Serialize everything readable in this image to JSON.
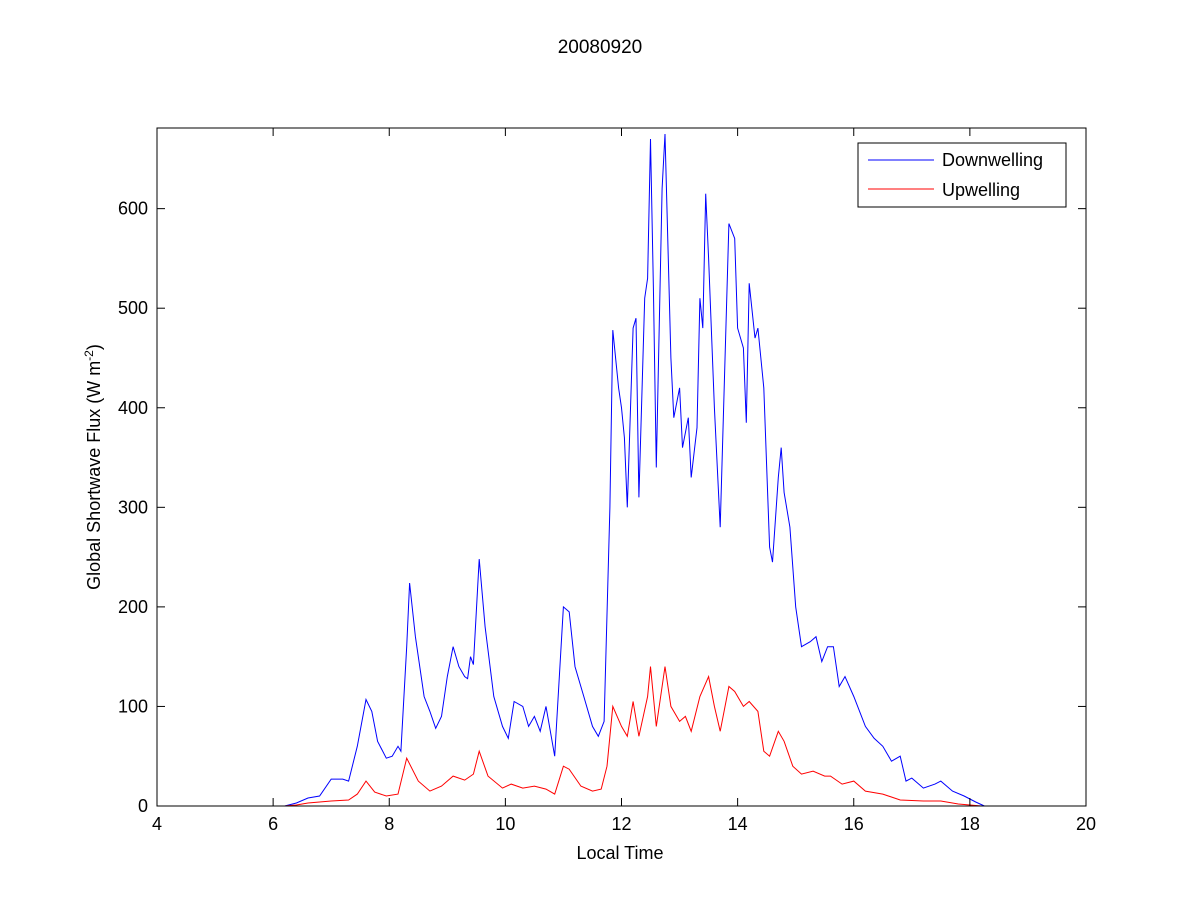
{
  "chart_data": {
    "type": "line",
    "title": "20080920",
    "xlabel": "Local Time",
    "ylabel": "Global Shortwave Flux (W m",
    "ylabel_sup": "-2",
    "ylabel_end": ")",
    "xlim": [
      4,
      20
    ],
    "ylim": [
      0,
      681
    ],
    "xticks": [
      4,
      6,
      8,
      10,
      12,
      14,
      16,
      18,
      20
    ],
    "yticks": [
      0,
      100,
      200,
      300,
      400,
      500,
      600
    ],
    "grid": false,
    "legend_position": "top-right",
    "series": [
      {
        "name": "Downwelling",
        "color": "#0000ff",
        "points": [
          [
            6.2,
            0
          ],
          [
            6.4,
            3
          ],
          [
            6.6,
            8
          ],
          [
            6.8,
            10
          ],
          [
            7.0,
            27
          ],
          [
            7.2,
            27
          ],
          [
            7.3,
            25
          ],
          [
            7.45,
            60
          ],
          [
            7.6,
            107
          ],
          [
            7.7,
            95
          ],
          [
            7.8,
            65
          ],
          [
            7.95,
            48
          ],
          [
            8.05,
            50
          ],
          [
            8.15,
            60
          ],
          [
            8.2,
            55
          ],
          [
            8.3,
            160
          ],
          [
            8.35,
            224
          ],
          [
            8.45,
            170
          ],
          [
            8.6,
            110
          ],
          [
            8.7,
            95
          ],
          [
            8.8,
            78
          ],
          [
            8.9,
            90
          ],
          [
            9.0,
            130
          ],
          [
            9.1,
            160
          ],
          [
            9.2,
            140
          ],
          [
            9.3,
            130
          ],
          [
            9.35,
            128
          ],
          [
            9.4,
            150
          ],
          [
            9.45,
            142
          ],
          [
            9.55,
            248
          ],
          [
            9.65,
            180
          ],
          [
            9.8,
            110
          ],
          [
            9.95,
            80
          ],
          [
            10.05,
            68
          ],
          [
            10.15,
            105
          ],
          [
            10.3,
            100
          ],
          [
            10.4,
            80
          ],
          [
            10.5,
            90
          ],
          [
            10.6,
            75
          ],
          [
            10.7,
            100
          ],
          [
            10.85,
            50
          ],
          [
            11.0,
            200
          ],
          [
            11.1,
            195
          ],
          [
            11.2,
            140
          ],
          [
            11.35,
            110
          ],
          [
            11.5,
            80
          ],
          [
            11.6,
            70
          ],
          [
            11.7,
            85
          ],
          [
            11.8,
            300
          ],
          [
            11.85,
            478
          ],
          [
            11.95,
            420
          ],
          [
            12.0,
            400
          ],
          [
            12.05,
            370
          ],
          [
            12.1,
            300
          ],
          [
            12.2,
            480
          ],
          [
            12.25,
            490
          ],
          [
            12.3,
            310
          ],
          [
            12.4,
            510
          ],
          [
            12.45,
            530
          ],
          [
            12.5,
            670
          ],
          [
            12.55,
            520
          ],
          [
            12.6,
            340
          ],
          [
            12.7,
            620
          ],
          [
            12.75,
            675
          ],
          [
            12.85,
            450
          ],
          [
            12.9,
            390
          ],
          [
            13.0,
            420
          ],
          [
            13.05,
            360
          ],
          [
            13.15,
            390
          ],
          [
            13.2,
            330
          ],
          [
            13.3,
            380
          ],
          [
            13.35,
            510
          ],
          [
            13.4,
            480
          ],
          [
            13.45,
            615
          ],
          [
            13.5,
            550
          ],
          [
            13.6,
            400
          ],
          [
            13.7,
            280
          ],
          [
            13.85,
            585
          ],
          [
            13.95,
            570
          ],
          [
            14.0,
            480
          ],
          [
            14.1,
            460
          ],
          [
            14.15,
            385
          ],
          [
            14.2,
            525
          ],
          [
            14.3,
            470
          ],
          [
            14.35,
            480
          ],
          [
            14.45,
            420
          ],
          [
            14.55,
            260
          ],
          [
            14.6,
            245
          ],
          [
            14.7,
            330
          ],
          [
            14.75,
            360
          ],
          [
            14.8,
            315
          ],
          [
            14.9,
            280
          ],
          [
            15.0,
            200
          ],
          [
            15.1,
            160
          ],
          [
            15.25,
            165
          ],
          [
            15.35,
            170
          ],
          [
            15.45,
            145
          ],
          [
            15.55,
            160
          ],
          [
            15.65,
            160
          ],
          [
            15.75,
            120
          ],
          [
            15.85,
            130
          ],
          [
            16.0,
            110
          ],
          [
            16.2,
            80
          ],
          [
            16.35,
            68
          ],
          [
            16.5,
            60
          ],
          [
            16.65,
            45
          ],
          [
            16.8,
            50
          ],
          [
            16.9,
            25
          ],
          [
            17.0,
            28
          ],
          [
            17.2,
            18
          ],
          [
            17.4,
            22
          ],
          [
            17.5,
            25
          ],
          [
            17.7,
            15
          ],
          [
            17.9,
            10
          ],
          [
            18.1,
            4
          ],
          [
            18.25,
            0
          ]
        ]
      },
      {
        "name": "Upwelling",
        "color": "#ff0000",
        "segments": [
          [
            [
              4.0,
              0
            ],
            [
              4.8,
              0
            ]
          ],
          [
            [
              5.5,
              0
            ],
            [
              6.2,
              0
            ],
            [
              6.4,
              1
            ],
            [
              6.6,
              3
            ],
            [
              7.0,
              5
            ],
            [
              7.3,
              6
            ],
            [
              7.45,
              12
            ],
            [
              7.6,
              25
            ],
            [
              7.75,
              14
            ],
            [
              7.95,
              10
            ],
            [
              8.15,
              12
            ],
            [
              8.3,
              48
            ],
            [
              8.5,
              25
            ],
            [
              8.7,
              15
            ],
            [
              8.9,
              20
            ],
            [
              9.1,
              30
            ],
            [
              9.3,
              26
            ],
            [
              9.45,
              32
            ],
            [
              9.55,
              55
            ],
            [
              9.7,
              30
            ],
            [
              9.95,
              18
            ],
            [
              10.1,
              22
            ],
            [
              10.3,
              18
            ],
            [
              10.5,
              20
            ],
            [
              10.7,
              17
            ],
            [
              10.85,
              12
            ],
            [
              11.0,
              40
            ],
            [
              11.1,
              37
            ],
            [
              11.3,
              20
            ],
            [
              11.5,
              15
            ],
            [
              11.65,
              17
            ],
            [
              11.75,
              40
            ],
            [
              11.85,
              100
            ],
            [
              12.0,
              80
            ],
            [
              12.1,
              70
            ],
            [
              12.2,
              105
            ],
            [
              12.3,
              70
            ],
            [
              12.45,
              110
            ],
            [
              12.5,
              140
            ],
            [
              12.6,
              80
            ],
            [
              12.75,
              140
            ],
            [
              12.85,
              100
            ],
            [
              13.0,
              85
            ],
            [
              13.1,
              90
            ],
            [
              13.2,
              75
            ],
            [
              13.35,
              110
            ],
            [
              13.5,
              130
            ],
            [
              13.6,
              100
            ],
            [
              13.7,
              75
            ],
            [
              13.85,
              120
            ],
            [
              13.95,
              115
            ],
            [
              14.1,
              100
            ],
            [
              14.2,
              105
            ],
            [
              14.35,
              95
            ],
            [
              14.45,
              55
            ],
            [
              14.55,
              50
            ],
            [
              14.7,
              75
            ],
            [
              14.8,
              65
            ],
            [
              14.95,
              40
            ],
            [
              15.1,
              32
            ],
            [
              15.3,
              35
            ],
            [
              15.5,
              30
            ],
            [
              15.6,
              30
            ],
            [
              15.8,
              22
            ],
            [
              16.0,
              25
            ],
            [
              16.2,
              15
            ],
            [
              16.5,
              12
            ],
            [
              16.8,
              6
            ],
            [
              17.2,
              5
            ],
            [
              17.5,
              5
            ],
            [
              17.8,
              2
            ],
            [
              18.2,
              0
            ]
          ],
          [
            [
              18.8,
              0
            ],
            [
              20.0,
              0
            ]
          ]
        ]
      }
    ]
  }
}
